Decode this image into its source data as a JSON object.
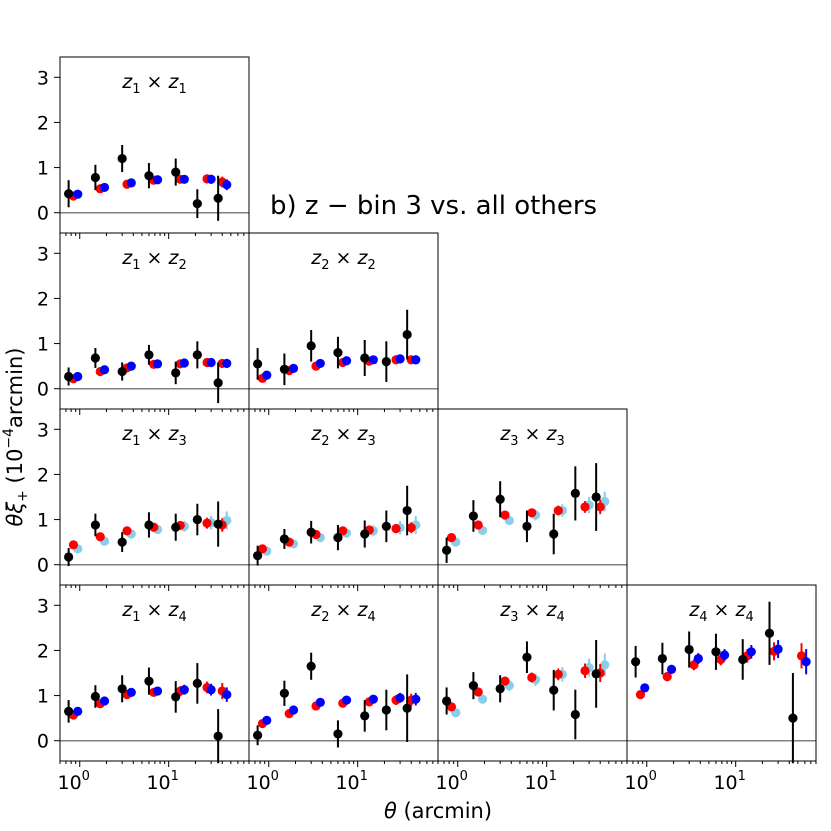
{
  "chart_data": {
    "type": "scatter",
    "annotation": "b) z − bin 3 vs.  all others",
    "xlabel": {
      "symbol": "θ",
      "rest": " (arcmin)"
    },
    "ylabel": {
      "text": "θξ",
      "sub": "+",
      "pre": " (10",
      "sup": "−4",
      "post": "arcmin)"
    },
    "xscale": "log",
    "xlim": [
      0.6,
      80
    ],
    "ylim": [
      -0.45,
      3.45
    ],
    "yticks": [
      0,
      1,
      2,
      3
    ],
    "xticks": [
      {
        "value": 1,
        "base": "10",
        "exp": "0"
      },
      {
        "value": 10,
        "base": "10",
        "exp": "1"
      }
    ],
    "series_colors": {
      "data": "#000000",
      "model_a": "#ff0000",
      "model_b": "#0000ff",
      "model_c": "#87ceeb"
    },
    "panels": [
      {
        "row": 0,
        "col": 0,
        "title": {
          "a": "z",
          "as": "1",
          "b": "z",
          "bs": "1"
        },
        "data": {
          "x": [
            0.75,
            1.5,
            3.0,
            6.0,
            12.0,
            21.0,
            36.0
          ],
          "y": [
            0.42,
            0.78,
            1.2,
            0.82,
            0.9,
            0.2,
            0.32
          ],
          "err": [
            0.3,
            0.28,
            0.3,
            0.28,
            0.3,
            0.32,
            0.5
          ]
        },
        "model_a": {
          "x": [
            0.85,
            1.7,
            3.4,
            6.8,
            13.5,
            27,
            40
          ],
          "y": [
            0.37,
            0.53,
            0.63,
            0.72,
            0.74,
            0.75,
            0.68
          ],
          "err": [
            0.05,
            0.06,
            0.07,
            0.08,
            0.09,
            0.1,
            0.12
          ]
        },
        "model_b": {
          "x": [
            0.95,
            1.9,
            3.8,
            7.5,
            15,
            30,
            45
          ],
          "y": [
            0.41,
            0.56,
            0.66,
            0.73,
            0.74,
            0.74,
            0.62
          ],
          "err": [
            0.05,
            0.06,
            0.07,
            0.08,
            0.09,
            0.1,
            0.12
          ]
        }
      },
      {
        "row": 1,
        "col": 0,
        "title": {
          "a": "z",
          "as": "1",
          "b": "z",
          "bs": "2"
        },
        "data": {
          "x": [
            0.75,
            1.5,
            3.0,
            6.0,
            12.0,
            21.0,
            36.0
          ],
          "y": [
            0.27,
            0.68,
            0.38,
            0.75,
            0.35,
            0.75,
            0.13
          ],
          "err": [
            0.2,
            0.22,
            0.2,
            0.22,
            0.25,
            0.3,
            0.45
          ]
        },
        "model_a": {
          "x": [
            0.85,
            1.7,
            3.4,
            6.8,
            13.5,
            27,
            40
          ],
          "y": [
            0.22,
            0.38,
            0.46,
            0.54,
            0.55,
            0.58,
            0.56
          ],
          "err": [
            0.05,
            0.06,
            0.07,
            0.08,
            0.09,
            0.1,
            0.1
          ]
        },
        "model_b": {
          "x": [
            0.95,
            1.9,
            3.8,
            7.5,
            15,
            30,
            45
          ],
          "y": [
            0.27,
            0.42,
            0.5,
            0.55,
            0.57,
            0.58,
            0.56
          ],
          "err": [
            0.05,
            0.06,
            0.07,
            0.08,
            0.09,
            0.1,
            0.1
          ]
        }
      },
      {
        "row": 1,
        "col": 1,
        "title": {
          "a": "z",
          "as": "2",
          "b": "z",
          "bs": "2"
        },
        "data": {
          "x": [
            0.75,
            1.5,
            3.0,
            6.0,
            12.0,
            21.0,
            36.0
          ],
          "y": [
            0.55,
            0.43,
            0.95,
            0.8,
            0.68,
            0.6,
            1.2
          ],
          "err": [
            0.35,
            0.35,
            0.35,
            0.35,
            0.4,
            0.45,
            0.55
          ]
        },
        "model_a": {
          "x": [
            0.85,
            1.7,
            3.4,
            6.8,
            13.5,
            27,
            40
          ],
          "y": [
            0.23,
            0.4,
            0.5,
            0.58,
            0.61,
            0.64,
            0.64
          ],
          "err": [
            0.05,
            0.06,
            0.07,
            0.08,
            0.09,
            0.1,
            0.1
          ]
        },
        "model_b": {
          "x": [
            0.95,
            1.9,
            3.8,
            7.5,
            15,
            30,
            45
          ],
          "y": [
            0.3,
            0.45,
            0.56,
            0.62,
            0.64,
            0.66,
            0.64
          ],
          "err": [
            0.05,
            0.06,
            0.07,
            0.08,
            0.09,
            0.1,
            0.1
          ]
        }
      },
      {
        "row": 2,
        "col": 0,
        "title": {
          "a": "z",
          "as": "1",
          "b": "z",
          "bs": "3"
        },
        "data": {
          "x": [
            0.75,
            1.5,
            3.0,
            6.0,
            12.0,
            21.0,
            36.0
          ],
          "y": [
            0.17,
            0.88,
            0.5,
            0.88,
            0.83,
            1.0,
            0.9
          ],
          "err": [
            0.2,
            0.25,
            0.22,
            0.28,
            0.3,
            0.35,
            0.5
          ]
        },
        "model_a": {
          "x": [
            0.85,
            1.7,
            3.4,
            6.8,
            13.5,
            27,
            40
          ],
          "y": [
            0.44,
            0.62,
            0.75,
            0.83,
            0.87,
            0.92,
            0.88
          ],
          "err": [
            0.05,
            0.06,
            0.07,
            0.08,
            0.09,
            0.12,
            0.15
          ]
        },
        "model_c": {
          "x": [
            0.95,
            1.9,
            3.8,
            7.5,
            15,
            30,
            45
          ],
          "y": [
            0.35,
            0.52,
            0.68,
            0.78,
            0.85,
            0.93,
            0.98
          ],
          "err": [
            0.07,
            0.08,
            0.09,
            0.1,
            0.12,
            0.15,
            0.2
          ]
        }
      },
      {
        "row": 2,
        "col": 1,
        "title": {
          "a": "z",
          "as": "2",
          "b": "z",
          "bs": "3"
        },
        "data": {
          "x": [
            0.75,
            1.5,
            3.0,
            6.0,
            12.0,
            21.0,
            36.0
          ],
          "y": [
            0.2,
            0.57,
            0.72,
            0.6,
            0.68,
            0.85,
            1.2
          ],
          "err": [
            0.22,
            0.22,
            0.25,
            0.28,
            0.3,
            0.35,
            0.55
          ]
        },
        "model_a": {
          "x": [
            0.85,
            1.7,
            3.4,
            6.8,
            13.5,
            27,
            40
          ],
          "y": [
            0.35,
            0.5,
            0.67,
            0.75,
            0.77,
            0.8,
            0.82
          ],
          "err": [
            0.05,
            0.06,
            0.07,
            0.08,
            0.09,
            0.1,
            0.12
          ]
        },
        "model_c": {
          "x": [
            0.95,
            1.9,
            3.8,
            7.5,
            15,
            30,
            45
          ],
          "y": [
            0.3,
            0.46,
            0.6,
            0.7,
            0.75,
            0.82,
            0.88
          ],
          "err": [
            0.07,
            0.08,
            0.09,
            0.1,
            0.12,
            0.15,
            0.2
          ]
        }
      },
      {
        "row": 2,
        "col": 2,
        "title": {
          "a": "z",
          "as": "3",
          "b": "z",
          "bs": "3"
        },
        "data": {
          "x": [
            0.75,
            1.5,
            3.0,
            6.0,
            12.0,
            21.0,
            36.0
          ],
          "y": [
            0.32,
            1.08,
            1.45,
            0.85,
            0.68,
            1.58,
            1.5
          ],
          "err": [
            0.28,
            0.35,
            0.4,
            0.35,
            0.45,
            0.6,
            0.75
          ]
        },
        "model_a": {
          "x": [
            0.85,
            1.7,
            3.4,
            6.8,
            13.5,
            27,
            40
          ],
          "y": [
            0.6,
            0.88,
            1.1,
            1.15,
            1.2,
            1.28,
            1.28
          ],
          "err": [
            0.06,
            0.07,
            0.08,
            0.09,
            0.11,
            0.13,
            0.16
          ]
        },
        "model_c": {
          "x": [
            0.95,
            1.9,
            3.8,
            7.5,
            15,
            30,
            45
          ],
          "y": [
            0.5,
            0.76,
            0.98,
            1.1,
            1.2,
            1.32,
            1.4
          ],
          "err": [
            0.08,
            0.09,
            0.1,
            0.12,
            0.14,
            0.18,
            0.22
          ]
        }
      },
      {
        "row": 3,
        "col": 0,
        "title": {
          "a": "z",
          "as": "1",
          "b": "z",
          "bs": "4"
        },
        "data": {
          "x": [
            0.75,
            1.5,
            3.0,
            6.0,
            12.0,
            21.0,
            36.0
          ],
          "y": [
            0.65,
            0.98,
            1.15,
            1.32,
            0.97,
            1.27,
            0.1
          ],
          "err": [
            0.25,
            0.25,
            0.3,
            0.3,
            0.35,
            0.45,
            0.6
          ]
        },
        "model_a": {
          "x": [
            0.85,
            1.7,
            3.4,
            6.8,
            13.5,
            27,
            40
          ],
          "y": [
            0.57,
            0.82,
            1.02,
            1.07,
            1.1,
            1.18,
            1.1
          ],
          "err": [
            0.06,
            0.07,
            0.08,
            0.09,
            0.11,
            0.13,
            0.18
          ]
        },
        "model_b": {
          "x": [
            0.95,
            1.9,
            3.8,
            7.5,
            15,
            30,
            45
          ],
          "y": [
            0.65,
            0.88,
            1.07,
            1.1,
            1.13,
            1.13,
            1.02
          ],
          "err": [
            0.06,
            0.07,
            0.08,
            0.09,
            0.11,
            0.13,
            0.16
          ]
        }
      },
      {
        "row": 3,
        "col": 1,
        "title": {
          "a": "z",
          "as": "2",
          "b": "z",
          "bs": "4"
        },
        "data": {
          "x": [
            0.75,
            1.5,
            3.0,
            6.0,
            12.0,
            21.0,
            36.0
          ],
          "y": [
            0.12,
            1.05,
            1.65,
            0.15,
            0.55,
            0.68,
            0.72
          ],
          "err": [
            0.22,
            0.28,
            0.3,
            0.3,
            0.35,
            0.45,
            0.75
          ]
        },
        "model_a": {
          "x": [
            0.85,
            1.7,
            3.4,
            6.8,
            13.5,
            27,
            40
          ],
          "y": [
            0.38,
            0.6,
            0.77,
            0.83,
            0.86,
            0.9,
            0.9
          ],
          "err": [
            0.05,
            0.06,
            0.07,
            0.08,
            0.09,
            0.11,
            0.14
          ]
        },
        "model_b": {
          "x": [
            0.95,
            1.9,
            3.8,
            7.5,
            15,
            30,
            45
          ],
          "y": [
            0.45,
            0.68,
            0.85,
            0.9,
            0.92,
            0.95,
            0.92
          ],
          "err": [
            0.05,
            0.06,
            0.07,
            0.08,
            0.09,
            0.11,
            0.14
          ]
        }
      },
      {
        "row": 3,
        "col": 2,
        "title": {
          "a": "z",
          "as": "3",
          "b": "z",
          "bs": "4"
        },
        "data": {
          "x": [
            0.75,
            1.5,
            3.0,
            6.0,
            12.0,
            21.0,
            36.0
          ],
          "y": [
            0.88,
            1.22,
            1.15,
            1.85,
            1.12,
            0.58,
            1.48
          ],
          "err": [
            0.3,
            0.3,
            0.3,
            0.35,
            0.45,
            0.55,
            0.75
          ]
        },
        "model_a": {
          "x": [
            0.85,
            1.7,
            3.4,
            6.8,
            13.5,
            27,
            40
          ],
          "y": [
            0.75,
            1.08,
            1.32,
            1.4,
            1.47,
            1.55,
            1.5
          ],
          "err": [
            0.07,
            0.08,
            0.1,
            0.11,
            0.13,
            0.16,
            0.2
          ]
        },
        "model_c": {
          "x": [
            0.95,
            1.9,
            3.8,
            7.5,
            15,
            30,
            45
          ],
          "y": [
            0.62,
            0.92,
            1.22,
            1.35,
            1.47,
            1.62,
            1.68
          ],
          "err": [
            0.09,
            0.1,
            0.12,
            0.14,
            0.16,
            0.2,
            0.25
          ]
        }
      },
      {
        "row": 3,
        "col": 3,
        "title": {
          "a": "z",
          "as": "4",
          "b": "z",
          "bs": "4"
        },
        "data": {
          "x": [
            0.75,
            1.5,
            3.0,
            6.0,
            12.0,
            24.0,
            44.0
          ],
          "y": [
            1.75,
            1.82,
            2.02,
            1.97,
            1.8,
            2.38,
            0.5
          ],
          "err": [
            0.35,
            0.35,
            0.4,
            0.4,
            0.45,
            0.7,
            1.0
          ]
        },
        "model_a": {
          "x": [
            0.85,
            1.7,
            3.4,
            6.8,
            13.5,
            27,
            55
          ],
          "y": [
            1.02,
            1.42,
            1.68,
            1.8,
            1.88,
            1.98,
            1.88
          ],
          "err": [
            0.08,
            0.1,
            0.12,
            0.13,
            0.15,
            0.2,
            0.28
          ]
        },
        "model_b": {
          "x": [
            0.95,
            1.9,
            3.8,
            7.5,
            15,
            30,
            62
          ],
          "y": [
            1.17,
            1.58,
            1.82,
            1.9,
            1.97,
            2.03,
            1.75
          ],
          "err": [
            0.08,
            0.1,
            0.12,
            0.13,
            0.15,
            0.2,
            0.28
          ]
        }
      }
    ]
  }
}
